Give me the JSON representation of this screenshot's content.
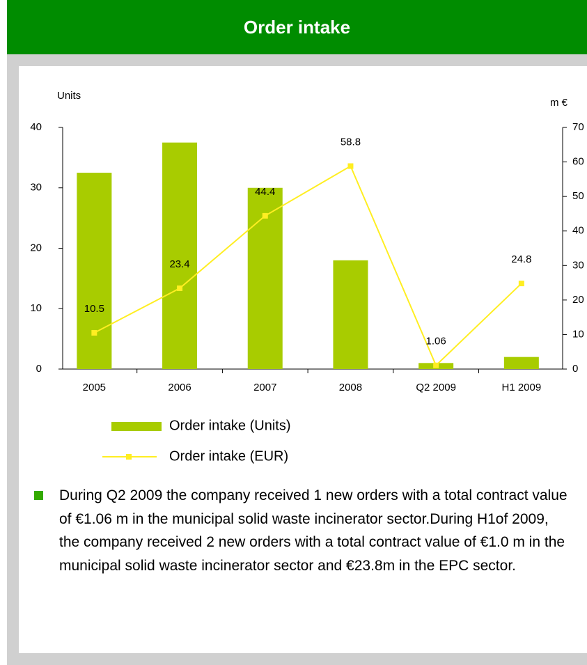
{
  "header": {
    "title": "Order intake"
  },
  "chart_data": {
    "type": "bar",
    "categories": [
      "2005",
      "2006",
      "2007",
      "2008",
      "Q2 2009",
      "H1 2009"
    ],
    "y_label": "Units",
    "y2_label": "m €",
    "ylim": [
      0,
      40
    ],
    "yticks": [
      0,
      10,
      20,
      30,
      40
    ],
    "y2lim": [
      0,
      70
    ],
    "y2ticks": [
      0,
      10,
      20,
      30,
      40,
      50,
      60,
      70
    ],
    "series": [
      {
        "name": "Order intake (Units)",
        "type": "bar",
        "color": "#a8cc00",
        "values": [
          32.5,
          37.5,
          30,
          18,
          1,
          2
        ]
      },
      {
        "name": "Order intake (EUR)",
        "type": "line",
        "axis": "y2",
        "color": "#ffee22",
        "values": [
          10.5,
          23.4,
          44.4,
          58.8,
          1.06,
          24.8
        ]
      }
    ]
  },
  "bullet_text": "During Q2 2009 the company received 1 new orders with a total contract value of €1.06 m in the municipal solid waste incinerator sector.During H1of 2009, the company received 2 new orders with a total contract value of €1.0 m in the municipal solid waste incinerator sector and €23.8m in the EPC sector."
}
